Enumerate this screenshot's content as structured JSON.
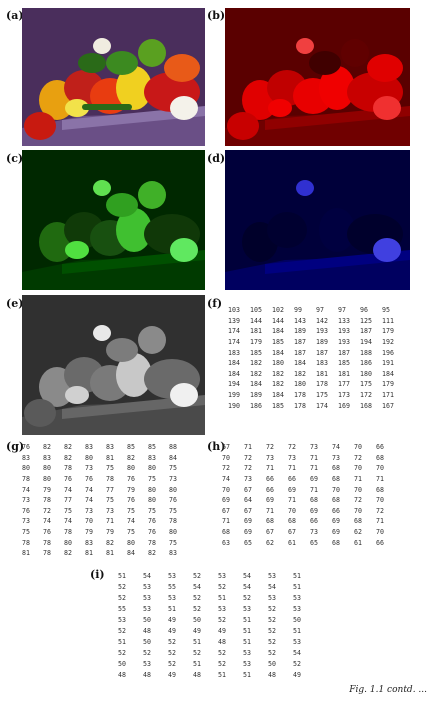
{
  "labels": {
    "a": "(a)",
    "b": "(b)",
    "c": "(c)",
    "d": "(d)",
    "e": "(e)",
    "f": "(f)",
    "g": "(g)",
    "h": "(h)",
    "i": "(i)"
  },
  "caption": "Fig. 1.1 contd. ...",
  "matrix_f": [
    [
      "103",
      "105",
      "102",
      "99",
      "97",
      "97",
      "96",
      "95"
    ],
    [
      "139",
      "144",
      "144",
      "143",
      "142",
      "133",
      "125",
      "111"
    ],
    [
      "174",
      "181",
      "184",
      "189",
      "193",
      "193",
      "187",
      "179"
    ],
    [
      "174",
      "179",
      "185",
      "187",
      "189",
      "193",
      "194",
      "192"
    ],
    [
      "183",
      "185",
      "184",
      "187",
      "187",
      "187",
      "188",
      "196"
    ],
    [
      "184",
      "182",
      "180",
      "184",
      "183",
      "185",
      "186",
      "191"
    ],
    [
      "184",
      "182",
      "182",
      "182",
      "181",
      "181",
      "180",
      "184"
    ],
    [
      "194",
      "184",
      "182",
      "180",
      "178",
      "177",
      "175",
      "179"
    ],
    [
      "199",
      "189",
      "184",
      "178",
      "175",
      "173",
      "172",
      "171"
    ],
    [
      "190",
      "186",
      "185",
      "178",
      "174",
      "169",
      "168",
      "167"
    ]
  ],
  "matrix_g": [
    [
      "76",
      "82",
      "82",
      "83",
      "83",
      "85",
      "85",
      "88"
    ],
    [
      "83",
      "83",
      "82",
      "80",
      "81",
      "82",
      "83",
      "84"
    ],
    [
      "80",
      "80",
      "78",
      "73",
      "75",
      "80",
      "80",
      "75"
    ],
    [
      "78",
      "80",
      "76",
      "76",
      "78",
      "76",
      "75",
      "73"
    ],
    [
      "74",
      "79",
      "74",
      "74",
      "77",
      "79",
      "80",
      "80"
    ],
    [
      "73",
      "78",
      "77",
      "74",
      "75",
      "76",
      "80",
      "76"
    ],
    [
      "76",
      "72",
      "75",
      "73",
      "73",
      "75",
      "75",
      "75"
    ],
    [
      "73",
      "74",
      "74",
      "70",
      "71",
      "74",
      "76",
      "78"
    ],
    [
      "75",
      "76",
      "78",
      "79",
      "79",
      "75",
      "76",
      "80"
    ],
    [
      "78",
      "78",
      "80",
      "83",
      "82",
      "80",
      "78",
      "75"
    ],
    [
      "81",
      "78",
      "82",
      "81",
      "81",
      "84",
      "82",
      "83"
    ]
  ],
  "matrix_h": [
    [
      "67",
      "71",
      "72",
      "72",
      "73",
      "74",
      "70",
      "66"
    ],
    [
      "70",
      "72",
      "73",
      "73",
      "71",
      "73",
      "72",
      "68"
    ],
    [
      "72",
      "72",
      "71",
      "71",
      "71",
      "68",
      "70",
      "70"
    ],
    [
      "74",
      "73",
      "66",
      "66",
      "69",
      "68",
      "71",
      "71"
    ],
    [
      "70",
      "67",
      "66",
      "69",
      "71",
      "70",
      "70",
      "68"
    ],
    [
      "69",
      "64",
      "69",
      "71",
      "68",
      "68",
      "72",
      "70"
    ],
    [
      "67",
      "67",
      "71",
      "70",
      "69",
      "66",
      "70",
      "72"
    ],
    [
      "71",
      "69",
      "68",
      "68",
      "66",
      "69",
      "68",
      "71"
    ],
    [
      "68",
      "69",
      "67",
      "67",
      "73",
      "69",
      "62",
      "70"
    ],
    [
      "63",
      "65",
      "62",
      "61",
      "65",
      "68",
      "61",
      "66"
    ]
  ],
  "matrix_i": [
    [
      "51",
      "54",
      "53",
      "52",
      "53",
      "54",
      "53",
      "51"
    ],
    [
      "52",
      "53",
      "55",
      "54",
      "52",
      "54",
      "54",
      "51"
    ],
    [
      "52",
      "53",
      "53",
      "52",
      "51",
      "52",
      "53",
      "53"
    ],
    [
      "55",
      "53",
      "51",
      "52",
      "53",
      "53",
      "52",
      "53"
    ],
    [
      "53",
      "50",
      "49",
      "50",
      "52",
      "51",
      "52",
      "50"
    ],
    [
      "52",
      "48",
      "49",
      "49",
      "49",
      "51",
      "52",
      "51"
    ],
    [
      "51",
      "50",
      "52",
      "51",
      "48",
      "51",
      "52",
      "53"
    ],
    [
      "52",
      "52",
      "52",
      "52",
      "52",
      "53",
      "52",
      "54"
    ],
    [
      "50",
      "53",
      "52",
      "51",
      "52",
      "53",
      "50",
      "52"
    ],
    [
      "48",
      "48",
      "49",
      "48",
      "51",
      "51",
      "48",
      "49"
    ]
  ]
}
